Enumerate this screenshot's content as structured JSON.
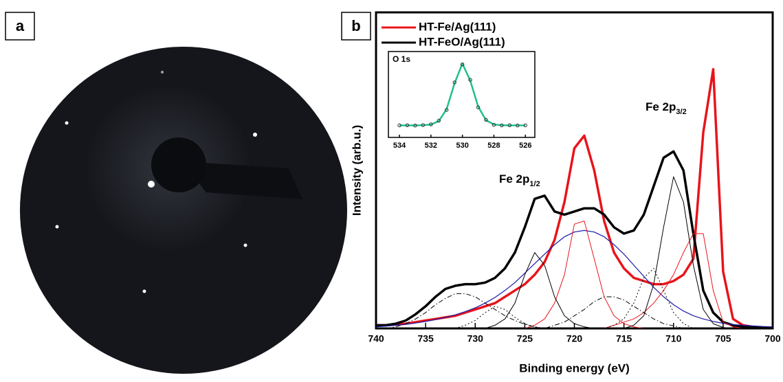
{
  "panel_labels": [
    "a",
    "b"
  ],
  "chart_data": [
    {
      "type": "line",
      "xlabel": "Binding energy (eV)",
      "ylabel": "Intensity (arb.u.)",
      "xlim": [
        740,
        700
      ],
      "ylim": [
        0,
        100
      ],
      "xticks": [
        740,
        735,
        730,
        725,
        720,
        715,
        710,
        705,
        700
      ],
      "legend": "upper left",
      "annotations": [
        {
          "text": "Fe 2p",
          "sub": "1/2"
        },
        {
          "text": "Fe 2p",
          "sub": "3/2"
        }
      ],
      "x": [
        740,
        739,
        738,
        737,
        736,
        735,
        734,
        733,
        732,
        731,
        730,
        729,
        728,
        727,
        726,
        725,
        724,
        723,
        722,
        721,
        720,
        719,
        718,
        717,
        716,
        715,
        714,
        713,
        712,
        711,
        710,
        709,
        708,
        707,
        706,
        705,
        704,
        703,
        702,
        701,
        700
      ],
      "series": [
        {
          "name": "HT-Fe/Ag(111)",
          "color": "#e8141b",
          "width": 3.5,
          "dash": "solid",
          "values": [
            1,
            1,
            1.2,
            1.5,
            2,
            2.5,
            3,
            3.5,
            4,
            5,
            6,
            7,
            8,
            10,
            12,
            14,
            17,
            21,
            28,
            40,
            57,
            61,
            50,
            34,
            24,
            19,
            16,
            15,
            14,
            14,
            15,
            17,
            22,
            62,
            82,
            18,
            3,
            1,
            0.5,
            0.3,
            0.2
          ]
        },
        {
          "name": "HT-FeO/Ag(111)",
          "color": "#000000",
          "width": 3.5,
          "dash": "solid",
          "values": [
            1,
            1,
            1.5,
            2.5,
            4.5,
            7,
            10,
            12.5,
            13.5,
            14,
            14,
            14.5,
            16,
            19,
            24,
            32,
            41,
            42,
            37,
            36,
            37,
            38,
            38,
            36,
            32,
            30,
            31,
            36,
            45,
            54,
            56,
            50,
            30,
            12,
            5,
            2,
            1,
            0.5,
            0.3,
            0.2,
            0.2
          ]
        },
        {
          "color": "#1a1aa8",
          "width": 1.2,
          "dash": "solid",
          "values": [
            0.5,
            0.7,
            1,
            1.3,
            1.7,
            2.2,
            2.8,
            3.5,
            4.3,
            5.3,
            6.5,
            8,
            9.8,
            12,
            14.5,
            17.5,
            20.5,
            23.5,
            26.5,
            29,
            30.5,
            31,
            30.5,
            29,
            26.5,
            23.5,
            20,
            16.5,
            13,
            10,
            7.5,
            5.5,
            4,
            3,
            2.2,
            1.6,
            1.2,
            1,
            0.8,
            0.6,
            0.5
          ]
        },
        {
          "color": "#e8141b",
          "width": 1,
          "dash": "solid",
          "values": [
            0,
            0,
            0,
            0,
            0,
            0,
            0,
            0,
            0,
            0,
            0,
            0,
            0,
            0,
            0,
            0,
            1,
            3,
            8,
            17,
            33,
            34,
            22,
            10,
            4,
            1.5,
            0.5,
            0,
            0,
            0,
            0,
            0,
            0,
            0,
            0,
            0,
            0,
            0,
            0,
            0,
            0
          ]
        },
        {
          "color": "#e8141b",
          "width": 1,
          "dash": "solid",
          "values": [
            0,
            0,
            0,
            0,
            0,
            0,
            0,
            0,
            0,
            0,
            0,
            0,
            0,
            0,
            0,
            0,
            0,
            0,
            0,
            0,
            0,
            0,
            0,
            0,
            1,
            2,
            3,
            5,
            8,
            12,
            17,
            24,
            30,
            30,
            12,
            2,
            0.5,
            0,
            0,
            0,
            0
          ]
        },
        {
          "color": "#000000",
          "width": 1,
          "dash": "solid",
          "values": [
            0,
            0,
            0,
            0,
            0,
            0,
            0,
            0,
            0,
            0,
            0,
            0,
            1,
            3,
            8,
            17,
            24,
            20,
            10,
            4,
            1.5,
            0.5,
            0,
            0,
            0,
            0,
            0,
            0,
            0,
            0,
            0,
            0,
            0,
            0,
            0,
            0,
            0,
            0,
            0,
            0,
            0
          ]
        },
        {
          "color": "#000000",
          "width": 1,
          "dash": "solid",
          "values": [
            0,
            0,
            0,
            0,
            0,
            0,
            0,
            0,
            0,
            0,
            0,
            0,
            0,
            0,
            0,
            0,
            0,
            0,
            0,
            0,
            0,
            0,
            0,
            0,
            0,
            0,
            1,
            4,
            14,
            32,
            48,
            40,
            20,
            6,
            1.5,
            0.3,
            0,
            0,
            0,
            0,
            0
          ]
        },
        {
          "color": "#000000",
          "width": 1,
          "dash": "dotted",
          "values": [
            0,
            0,
            0,
            0,
            0,
            0,
            0,
            0,
            0,
            1,
            2.5,
            5,
            7,
            6,
            3.5,
            1.5,
            0.5,
            0,
            0,
            0,
            0,
            0,
            0,
            0,
            0,
            0,
            0,
            0,
            0,
            0,
            0,
            0,
            0,
            0,
            0,
            0,
            0,
            0,
            0,
            0,
            0
          ]
        },
        {
          "color": "#000000",
          "width": 1,
          "dash": "dotted",
          "values": [
            0,
            0,
            0,
            0,
            0,
            0,
            0,
            0,
            0,
            0,
            0,
            0,
            0,
            0,
            0,
            0,
            0,
            0,
            0,
            0,
            0,
            0,
            0,
            0,
            1,
            3,
            8,
            16,
            19,
            12,
            5,
            1.5,
            0,
            0,
            0,
            0,
            0,
            0,
            0,
            0,
            0
          ]
        },
        {
          "color": "#000000",
          "width": 1,
          "dash": "dashdot",
          "values": [
            0,
            0,
            0.5,
            1.5,
            3,
            5,
            7.5,
            9.5,
            11,
            11,
            10,
            8,
            6,
            4,
            2.5,
            1.3,
            0.5,
            0,
            0,
            0,
            0,
            0,
            0,
            0,
            0,
            0,
            0,
            0,
            0,
            0,
            0,
            0,
            0,
            0,
            0,
            0,
            0,
            0,
            0,
            0,
            0
          ]
        },
        {
          "color": "#000000",
          "width": 1,
          "dash": "dashdot",
          "values": [
            0,
            0,
            0,
            0,
            0,
            0,
            0,
            0,
            0,
            0,
            0,
            0,
            0,
            0,
            0,
            0,
            0,
            0,
            1,
            2,
            4,
            6,
            8.5,
            10,
            10,
            9,
            7,
            5,
            3,
            1.5,
            0.8,
            0,
            0,
            0,
            0,
            0,
            0,
            0,
            0,
            0,
            0
          ]
        }
      ]
    },
    {
      "type": "line",
      "title": "O 1s",
      "xlim": [
        534.7,
        525.4
      ],
      "ylim": [
        0,
        100
      ],
      "xticks": [
        534,
        532,
        530,
        528,
        526
      ],
      "x": [
        534,
        533.5,
        533,
        532.5,
        532,
        531.5,
        531,
        530.5,
        530,
        529.5,
        529,
        528.5,
        528,
        527.5,
        527,
        526.5,
        526
      ],
      "series": [
        {
          "color": "#1fbf8f",
          "width": 2.5,
          "marker": "none",
          "values": [
            14,
            14,
            14,
            14.2,
            15,
            19,
            33,
            63,
            86,
            66,
            36,
            20,
            15,
            14.2,
            14,
            14,
            14
          ]
        },
        {
          "color": "#333333",
          "width": 1,
          "marker": "circle",
          "values": [
            14,
            14.2,
            13.8,
            14.4,
            15.2,
            19.5,
            32,
            64,
            85,
            67,
            35,
            20.5,
            14.6,
            14,
            14.1,
            13.9,
            14
          ]
        }
      ]
    }
  ]
}
